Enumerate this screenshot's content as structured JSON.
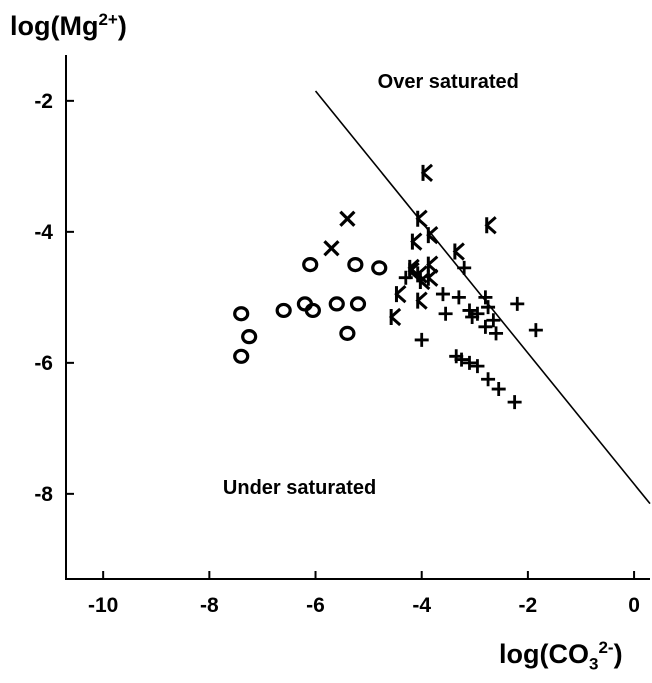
{
  "chart_data": {
    "type": "scatter",
    "title": "",
    "ylabel": {
      "base": "log(Mg",
      "sup": "2+",
      "close": ")"
    },
    "xlabel": {
      "base": "log(CO",
      "sub": "3",
      "sup": "2-",
      "close": ")"
    },
    "xlim": [
      -10.7,
      0.3
    ],
    "ylim": [
      -9.3,
      -1.3
    ],
    "xticks": [
      -10,
      -8,
      -6,
      -4,
      -2,
      0
    ],
    "yticks": [
      -2,
      -4,
      -6,
      -8
    ],
    "grid": false,
    "annotations": [
      {
        "text": "Over saturated",
        "x": -3.5,
        "y": -1.8
      },
      {
        "text": "Under saturated",
        "x": -6.3,
        "y": -8.0
      }
    ],
    "saturation_line": {
      "x": [
        -6.0,
        0.3
      ],
      "y": [
        -1.85,
        -8.15
      ]
    },
    "series": [
      {
        "marker": "O",
        "points": [
          [
            -7.4,
            -5.9
          ],
          [
            -7.4,
            -5.25
          ],
          [
            -7.25,
            -5.6
          ],
          [
            -6.6,
            -5.2
          ],
          [
            -6.2,
            -5.1
          ],
          [
            -6.05,
            -5.2
          ],
          [
            -6.1,
            -4.5
          ],
          [
            -5.6,
            -5.1
          ],
          [
            -5.2,
            -5.1
          ],
          [
            -5.4,
            -5.55
          ],
          [
            -5.25,
            -4.5
          ],
          [
            -4.8,
            -4.55
          ]
        ]
      },
      {
        "marker": "X",
        "points": [
          [
            -5.4,
            -3.8
          ],
          [
            -5.7,
            -4.25
          ]
        ]
      },
      {
        "marker": "K",
        "points": [
          [
            -3.9,
            -3.1
          ],
          [
            -4.0,
            -3.8
          ],
          [
            -2.7,
            -3.9
          ],
          [
            -3.8,
            -4.05
          ],
          [
            -4.1,
            -4.15
          ],
          [
            -3.3,
            -4.3
          ],
          [
            -4.15,
            -4.55
          ],
          [
            -4.0,
            -4.65
          ],
          [
            -3.8,
            -4.5
          ],
          [
            -3.8,
            -4.7
          ],
          [
            -4.4,
            -4.95
          ],
          [
            -4.0,
            -5.05
          ],
          [
            -4.5,
            -5.3
          ],
          [
            -3.95,
            -4.75
          ],
          [
            -4.15,
            -4.6
          ]
        ]
      },
      {
        "marker": "+",
        "points": [
          [
            -3.2,
            -4.55
          ],
          [
            -4.3,
            -4.7
          ],
          [
            -3.6,
            -4.95
          ],
          [
            -3.3,
            -5.0
          ],
          [
            -3.55,
            -5.25
          ],
          [
            -2.8,
            -5.0
          ],
          [
            -2.75,
            -5.15
          ],
          [
            -3.1,
            -5.2
          ],
          [
            -2.95,
            -5.25
          ],
          [
            -3.05,
            -5.3
          ],
          [
            -2.2,
            -5.1
          ],
          [
            -2.65,
            -5.35
          ],
          [
            -2.8,
            -5.45
          ],
          [
            -2.6,
            -5.55
          ],
          [
            -1.85,
            -5.5
          ],
          [
            -4.0,
            -5.65
          ],
          [
            -3.35,
            -5.9
          ],
          [
            -3.25,
            -5.95
          ],
          [
            -3.1,
            -6.0
          ],
          [
            -2.95,
            -6.05
          ],
          [
            -2.75,
            -6.25
          ],
          [
            -2.55,
            -6.4
          ],
          [
            -2.25,
            -6.6
          ]
        ]
      }
    ]
  }
}
